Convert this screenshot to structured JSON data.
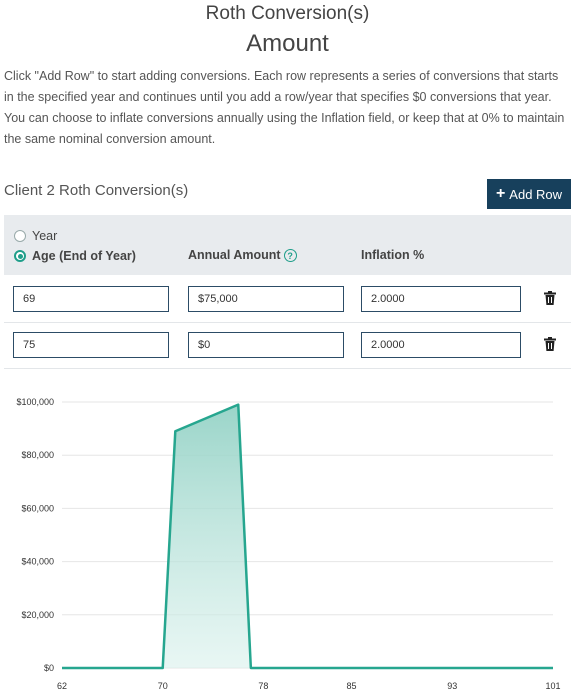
{
  "header": {
    "title_line1": "Roth Conversion(s)",
    "title_line2": "Amount"
  },
  "description": "Click \"Add Row\" to start adding conversions. Each row represents a series of conversions that starts in the specified year and continues until you add a row/year that specifies $0 conversions that year. You can choose to inflate conversions annually using the Inflation field, or keep that at 0% to maintain the same nominal conversion amount.",
  "section": {
    "title": "Client 2 Roth Conversion(s)",
    "add_row_label": "Add Row",
    "add_row_icon": "plus-icon"
  },
  "table": {
    "radio_year": "Year",
    "radio_age": "Age (End of Year)",
    "selected_mode": "Age (End of Year)",
    "col_amount": "Annual Amount",
    "col_inflation": "Inflation %",
    "help_icon": "question-circle-icon",
    "rows": [
      {
        "age": "69",
        "amount": "$75,000",
        "inflation": "2.0000"
      },
      {
        "age": "75",
        "amount": "$0",
        "inflation": "2.0000"
      }
    ]
  },
  "colors": {
    "accent": "#1f9e8a",
    "button": "#17405c",
    "line": "#26a68f"
  },
  "chart_data": {
    "type": "area",
    "x_ticks": [
      "62",
      "70",
      "78",
      "85",
      "93",
      "101"
    ],
    "y_ticks": [
      "$0",
      "$20,000",
      "$40,000",
      "$60,000",
      "$80,000",
      "$100,000"
    ],
    "xlim": [
      62,
      101
    ],
    "ylim": [
      0,
      100000
    ],
    "x": [
      62,
      70,
      71,
      76,
      77,
      101
    ],
    "y": [
      0,
      0,
      89000,
      99000,
      0,
      0
    ],
    "grid": true
  }
}
